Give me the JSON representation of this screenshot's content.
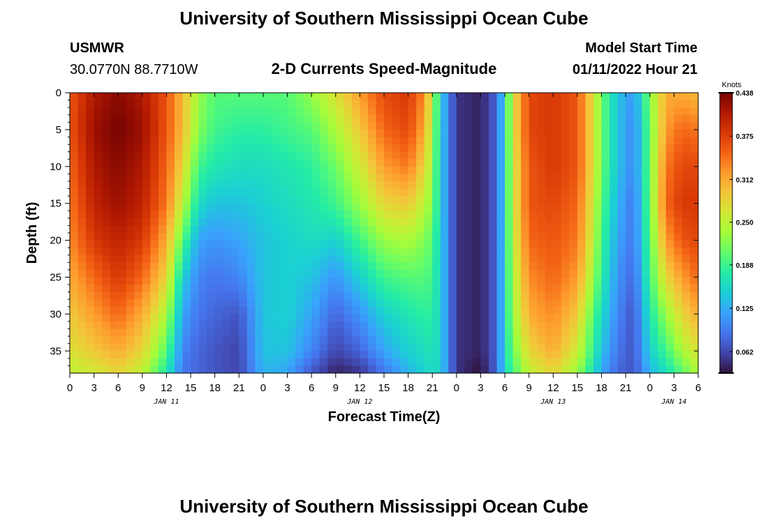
{
  "header": {
    "title": "University of Southern Mississippi Ocean Cube",
    "station_id": "USMWR",
    "coordinates": "30.0770N  88.7710W",
    "chart_title": "2-D Currents Speed-Magnitude",
    "model_start_label": "Model Start Time",
    "model_start_value": "01/11/2022 Hour 21"
  },
  "footer": {
    "title": "University of Southern Mississippi Ocean Cube"
  },
  "chart_data": {
    "type": "heatmap",
    "title": "2-D Currents Speed-Magnitude",
    "xlabel": "Forecast Time(Z)",
    "ylabel": "Depth (ft)",
    "x_ticks": [
      "0",
      "3",
      "6",
      "9",
      "12",
      "15",
      "18",
      "21",
      "0",
      "3",
      "6",
      "9",
      "12",
      "15",
      "18",
      "21",
      "0",
      "3",
      "6",
      "9",
      "12",
      "15",
      "18",
      "21",
      "0",
      "3",
      "6"
    ],
    "x_range_hours": [
      0,
      78
    ],
    "x_tick_step_hours": 3,
    "date_labels": [
      {
        "text": "JAN 11",
        "hour": 12
      },
      {
        "text": "JAN 12",
        "hour": 36
      },
      {
        "text": "JAN 13",
        "hour": 60
      },
      {
        "text": "JAN 14",
        "hour": 75
      }
    ],
    "y_ticks": [
      "0",
      "5",
      "10",
      "15",
      "20",
      "25",
      "30",
      "35"
    ],
    "y_tick_values": [
      0,
      5,
      10,
      15,
      20,
      25,
      30,
      35
    ],
    "y_range": [
      0,
      38
    ],
    "y_inverted": true,
    "colorbar": {
      "unit": "Knots",
      "min": 0.031,
      "max": 0.438,
      "tick_labels": [
        "0.438",
        "0.375",
        "0.312",
        "0.250",
        "0.188",
        "0.125",
        "0.062"
      ],
      "tick_values": [
        0.438,
        0.375,
        0.312,
        0.25,
        0.188,
        0.125,
        0.062
      ]
    },
    "colormap": [
      "#30123b",
      "#4145ab",
      "#4675ed",
      "#39a2fc",
      "#1bcfd4",
      "#24eca6",
      "#61fc6c",
      "#a4fc3b",
      "#d1e834",
      "#f3c63a",
      "#fe9b2d",
      "#f36315",
      "#d93806",
      "#b11901",
      "#7a0402"
    ],
    "depth_levels": [
      0,
      5,
      10,
      15,
      20,
      25,
      30,
      35,
      38
    ],
    "speed_profiles": [
      {
        "hour": 0,
        "speeds": [
          0.36,
          0.36,
          0.35,
          0.34,
          0.33,
          0.31,
          0.29,
          0.27,
          0.25
        ]
      },
      {
        "hour": 3,
        "speeds": [
          0.41,
          0.42,
          0.41,
          0.4,
          0.38,
          0.35,
          0.32,
          0.29,
          0.26
        ]
      },
      {
        "hour": 6,
        "speeds": [
          0.43,
          0.44,
          0.43,
          0.42,
          0.4,
          0.38,
          0.35,
          0.31,
          0.28
        ]
      },
      {
        "hour": 9,
        "speeds": [
          0.41,
          0.42,
          0.41,
          0.4,
          0.38,
          0.35,
          0.31,
          0.28,
          0.25
        ]
      },
      {
        "hour": 12,
        "speeds": [
          0.36,
          0.36,
          0.35,
          0.34,
          0.31,
          0.28,
          0.24,
          0.2,
          0.17
        ]
      },
      {
        "hour": 14,
        "speeds": [
          0.3,
          0.3,
          0.28,
          0.25,
          0.2,
          0.15,
          0.12,
          0.1,
          0.09
        ]
      },
      {
        "hour": 16,
        "speeds": [
          0.23,
          0.22,
          0.19,
          0.16,
          0.12,
          0.1,
          0.09,
          0.08,
          0.08
        ]
      },
      {
        "hour": 18,
        "speeds": [
          0.2,
          0.19,
          0.17,
          0.14,
          0.11,
          0.09,
          0.08,
          0.07,
          0.07
        ]
      },
      {
        "hour": 21,
        "speeds": [
          0.2,
          0.18,
          0.16,
          0.14,
          0.12,
          0.1,
          0.07,
          0.06,
          0.06
        ]
      },
      {
        "hour": 24,
        "speeds": [
          0.2,
          0.18,
          0.16,
          0.15,
          0.14,
          0.14,
          0.14,
          0.14,
          0.13
        ]
      },
      {
        "hour": 27,
        "speeds": [
          0.2,
          0.19,
          0.17,
          0.16,
          0.15,
          0.15,
          0.15,
          0.14,
          0.12
        ]
      },
      {
        "hour": 30,
        "speeds": [
          0.23,
          0.2,
          0.18,
          0.17,
          0.16,
          0.14,
          0.12,
          0.1,
          0.07
        ]
      },
      {
        "hour": 33,
        "speeds": [
          0.27,
          0.24,
          0.21,
          0.19,
          0.15,
          0.11,
          0.08,
          0.06,
          0.04
        ]
      },
      {
        "hour": 36,
        "speeds": [
          0.32,
          0.29,
          0.26,
          0.23,
          0.19,
          0.15,
          0.11,
          0.08,
          0.05
        ]
      },
      {
        "hour": 39,
        "speeds": [
          0.37,
          0.35,
          0.32,
          0.28,
          0.23,
          0.19,
          0.15,
          0.12,
          0.09
        ]
      },
      {
        "hour": 42,
        "speeds": [
          0.38,
          0.37,
          0.34,
          0.29,
          0.24,
          0.2,
          0.17,
          0.15,
          0.13
        ]
      },
      {
        "hour": 44,
        "speeds": [
          0.33,
          0.31,
          0.28,
          0.25,
          0.22,
          0.2,
          0.18,
          0.16,
          0.15
        ]
      },
      {
        "hour": 45,
        "speeds": [
          0.25,
          0.24,
          0.23,
          0.22,
          0.2,
          0.19,
          0.18,
          0.17,
          0.16
        ]
      },
      {
        "hour": 46,
        "speeds": [
          0.15,
          0.15,
          0.15,
          0.15,
          0.15,
          0.15,
          0.15,
          0.15,
          0.15
        ]
      },
      {
        "hour": 47,
        "speeds": [
          0.1,
          0.1,
          0.1,
          0.1,
          0.1,
          0.1,
          0.1,
          0.1,
          0.1
        ]
      },
      {
        "hour": 48,
        "speeds": [
          0.05,
          0.05,
          0.05,
          0.05,
          0.05,
          0.05,
          0.05,
          0.05,
          0.05
        ]
      },
      {
        "hour": 51,
        "speeds": [
          0.04,
          0.04,
          0.04,
          0.04,
          0.04,
          0.04,
          0.04,
          0.04,
          0.03
        ]
      },
      {
        "hour": 53,
        "speeds": [
          0.08,
          0.08,
          0.08,
          0.08,
          0.08,
          0.08,
          0.08,
          0.08,
          0.08
        ]
      },
      {
        "hour": 54,
        "speeds": [
          0.16,
          0.16,
          0.16,
          0.16,
          0.16,
          0.16,
          0.16,
          0.16,
          0.16
        ]
      },
      {
        "hour": 55,
        "speeds": [
          0.27,
          0.27,
          0.26,
          0.26,
          0.25,
          0.24,
          0.23,
          0.21,
          0.19
        ]
      },
      {
        "hour": 57,
        "speeds": [
          0.37,
          0.37,
          0.36,
          0.36,
          0.35,
          0.33,
          0.31,
          0.28,
          0.25
        ]
      },
      {
        "hour": 60,
        "speeds": [
          0.38,
          0.38,
          0.38,
          0.37,
          0.36,
          0.35,
          0.33,
          0.31,
          0.28
        ]
      },
      {
        "hour": 63,
        "speeds": [
          0.36,
          0.36,
          0.36,
          0.35,
          0.34,
          0.32,
          0.29,
          0.26,
          0.23
        ]
      },
      {
        "hour": 65,
        "speeds": [
          0.27,
          0.27,
          0.27,
          0.26,
          0.25,
          0.23,
          0.2,
          0.18,
          0.16
        ]
      },
      {
        "hour": 66,
        "speeds": [
          0.21,
          0.21,
          0.21,
          0.2,
          0.19,
          0.18,
          0.16,
          0.14,
          0.12
        ]
      },
      {
        "hour": 68,
        "speeds": [
          0.14,
          0.14,
          0.14,
          0.13,
          0.12,
          0.11,
          0.1,
          0.09,
          0.08
        ]
      },
      {
        "hour": 70,
        "speeds": [
          0.11,
          0.1,
          0.1,
          0.09,
          0.09,
          0.08,
          0.07,
          0.07,
          0.07
        ]
      },
      {
        "hour": 72,
        "speeds": [
          0.22,
          0.21,
          0.21,
          0.21,
          0.2,
          0.19,
          0.17,
          0.15,
          0.13
        ]
      },
      {
        "hour": 74,
        "speeds": [
          0.31,
          0.32,
          0.34,
          0.35,
          0.32,
          0.28,
          0.23,
          0.19,
          0.16
        ]
      },
      {
        "hour": 76,
        "speeds": [
          0.31,
          0.35,
          0.37,
          0.38,
          0.36,
          0.32,
          0.28,
          0.24,
          0.2
        ]
      },
      {
        "hour": 78,
        "speeds": [
          0.3,
          0.34,
          0.37,
          0.38,
          0.37,
          0.35,
          0.31,
          0.27,
          0.24
        ]
      }
    ]
  }
}
